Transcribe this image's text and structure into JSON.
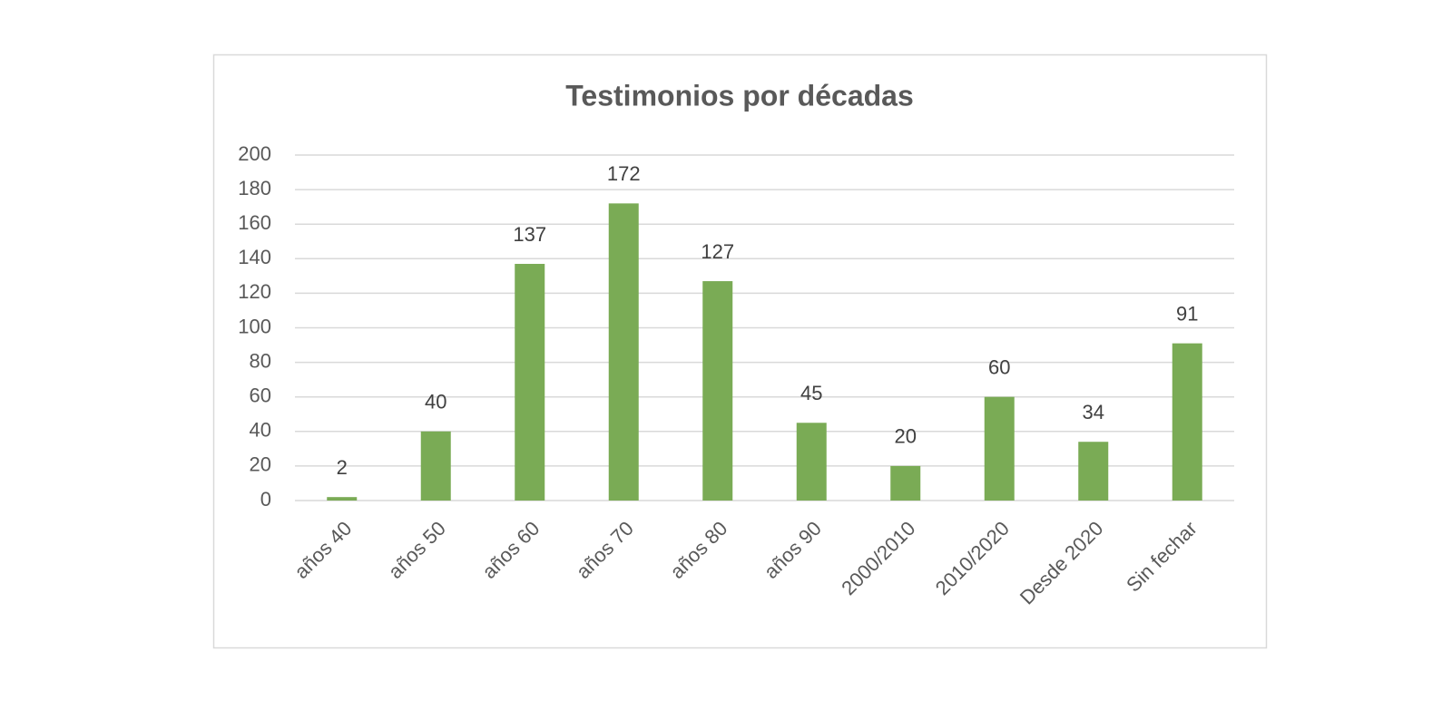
{
  "chart_data": {
    "type": "bar",
    "title": "Testimonios por décadas",
    "categories": [
      "años 40",
      "años 50",
      "años 60",
      "años 70",
      "años 80",
      "años 90",
      "2000/2010",
      "2010/2020",
      "Desde 2020",
      "Sin fechar"
    ],
    "values": [
      2,
      40,
      137,
      172,
      127,
      45,
      20,
      60,
      34,
      91
    ],
    "color": "#7aab55",
    "ylim": [
      0,
      200
    ],
    "yticks": [
      0,
      20,
      40,
      60,
      80,
      100,
      120,
      140,
      160,
      180,
      200
    ],
    "grid": true,
    "data_labels": true
  }
}
